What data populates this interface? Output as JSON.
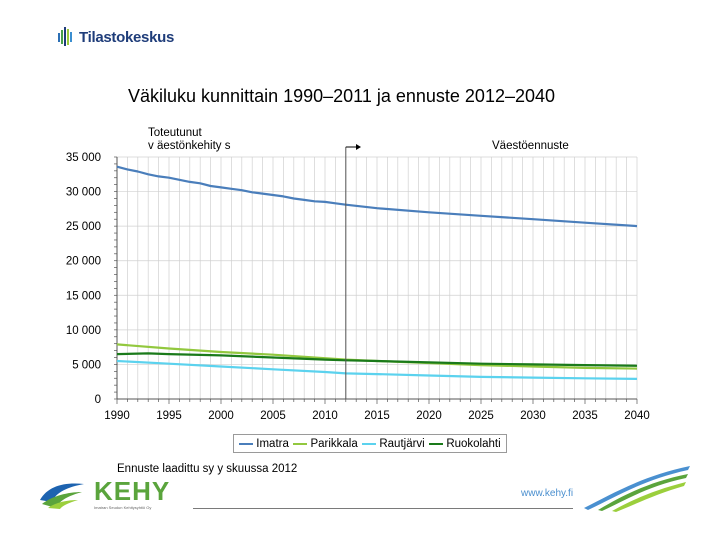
{
  "brand": {
    "name": "Tilastokeskus",
    "logo_icon": "tilastokeskus-logo-icon"
  },
  "title": "Väkiluku kunnittain 1990–2011 ja ennuste 2012–2040",
  "notes": {
    "left": "Toteutunut\nv äestönkehity s",
    "right": "Väestöennuste"
  },
  "footnote": "Ennuste laadittu sy y skuussa 2012",
  "footer": {
    "org": "KEHY",
    "org_sub": "Imatran Seudun Kehitysyhtiö Oy",
    "url": "www.kehy.fi",
    "logo_icon": "kehy-swoosh-logo-icon"
  },
  "colors": {
    "Imatra": "#4a7ebb",
    "Parikkala": "#92c83e",
    "Rautjärvi": "#5bd2ee",
    "Ruokolahti": "#1a7a1a",
    "brand_blue": "#1f3d7a",
    "kehy_green": "#5aa43c"
  },
  "chart_data": {
    "type": "line",
    "title": "Väkiluku kunnittain 1990–2011 ja ennuste 2012–2040",
    "xlabel": "",
    "ylabel": "",
    "x_ticks": [
      1990,
      1995,
      2000,
      2005,
      2010,
      2015,
      2020,
      2025,
      2030,
      2035,
      2040
    ],
    "y_ticks": [
      0,
      5000,
      10000,
      15000,
      20000,
      25000,
      30000,
      35000
    ],
    "y_tick_labels": [
      "0",
      "5 000",
      "10 000",
      "15 000",
      "20 000",
      "25 000",
      "30 000",
      "35 000"
    ],
    "xlim": [
      1990,
      2040
    ],
    "ylim": [
      0,
      35000
    ],
    "grid": true,
    "divider_year": 2012,
    "legend_position": "bottom",
    "series": [
      {
        "name": "Imatra",
        "points": [
          [
            1990,
            33600
          ],
          [
            1991,
            33200
          ],
          [
            1992,
            32900
          ],
          [
            1993,
            32500
          ],
          [
            1994,
            32200
          ],
          [
            1995,
            32000
          ],
          [
            1996,
            31700
          ],
          [
            1997,
            31400
          ],
          [
            1998,
            31200
          ],
          [
            1999,
            30800
          ],
          [
            2000,
            30600
          ],
          [
            2001,
            30400
          ],
          [
            2002,
            30200
          ],
          [
            2003,
            29900
          ],
          [
            2004,
            29700
          ],
          [
            2005,
            29500
          ],
          [
            2006,
            29300
          ],
          [
            2007,
            29000
          ],
          [
            2008,
            28800
          ],
          [
            2009,
            28600
          ],
          [
            2010,
            28500
          ],
          [
            2011,
            28300
          ],
          [
            2012,
            28100
          ],
          [
            2015,
            27600
          ],
          [
            2020,
            27000
          ],
          [
            2025,
            26500
          ],
          [
            2030,
            26000
          ],
          [
            2035,
            25500
          ],
          [
            2040,
            25000
          ]
        ]
      },
      {
        "name": "Parikkala",
        "points": [
          [
            1990,
            7900
          ],
          [
            1995,
            7300
          ],
          [
            2000,
            6800
          ],
          [
            2005,
            6400
          ],
          [
            2010,
            5900
          ],
          [
            2012,
            5700
          ],
          [
            2015,
            5500
          ],
          [
            2020,
            5200
          ],
          [
            2025,
            4900
          ],
          [
            2030,
            4700
          ],
          [
            2035,
            4500
          ],
          [
            2040,
            4400
          ]
        ]
      },
      {
        "name": "Rautjärvi",
        "points": [
          [
            1990,
            5500
          ],
          [
            1995,
            5100
          ],
          [
            2000,
            4700
          ],
          [
            2005,
            4300
          ],
          [
            2010,
            3900
          ],
          [
            2012,
            3700
          ],
          [
            2015,
            3600
          ],
          [
            2020,
            3400
          ],
          [
            2025,
            3200
          ],
          [
            2030,
            3100
          ],
          [
            2035,
            3000
          ],
          [
            2040,
            2900
          ]
        ]
      },
      {
        "name": "Ruokolahti",
        "points": [
          [
            1990,
            6500
          ],
          [
            1993,
            6600
          ],
          [
            1995,
            6500
          ],
          [
            2000,
            6300
          ],
          [
            2005,
            6000
          ],
          [
            2010,
            5700
          ],
          [
            2012,
            5600
          ],
          [
            2015,
            5500
          ],
          [
            2020,
            5300
          ],
          [
            2025,
            5100
          ],
          [
            2030,
            5000
          ],
          [
            2035,
            4900
          ],
          [
            2040,
            4800
          ]
        ]
      }
    ]
  }
}
